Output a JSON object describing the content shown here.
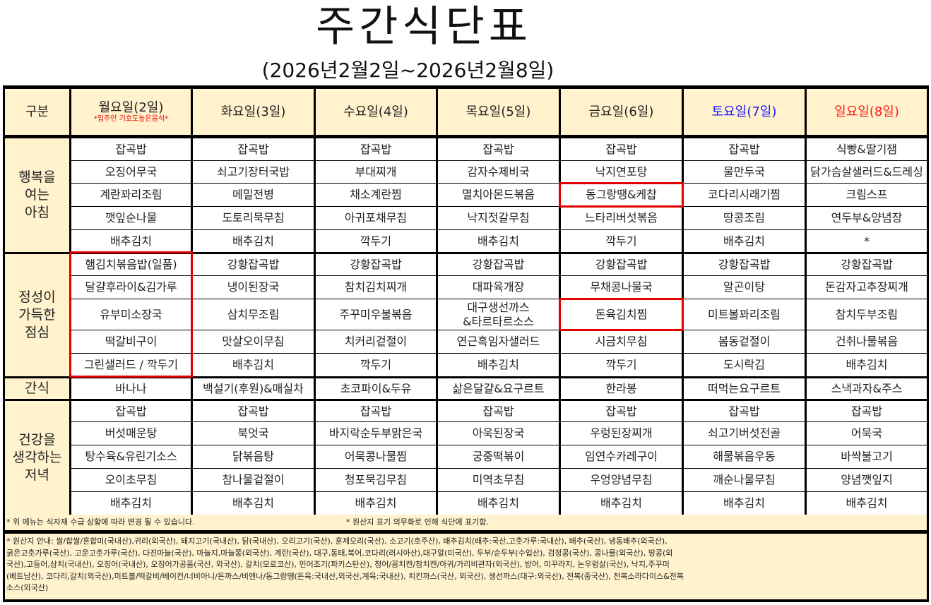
{
  "title": "주간식단표",
  "subtitle": "(2026년2월2일~2026년2월8일)",
  "colors": {
    "header_bg": "#FFF2CC",
    "saturday": "#1a1aff",
    "sunday": "#ff1a1a",
    "highlight_box": "#e00000"
  },
  "header": {
    "category_label": "구분",
    "days": [
      {
        "label": "월요일(2일)",
        "note": "*입주인 기호도높은음식*",
        "color": "#222222"
      },
      {
        "label": "화요일(3일)",
        "color": "#222222"
      },
      {
        "label": "수요일(4일)",
        "color": "#222222"
      },
      {
        "label": "목요일(5일)",
        "color": "#222222"
      },
      {
        "label": "금요일(6일)",
        "color": "#222222"
      },
      {
        "label": "토요일(7일)",
        "color": "#1a1aff"
      },
      {
        "label": "일요일(8일)",
        "color": "#ff1a1a"
      }
    ]
  },
  "meals": [
    {
      "name": "행복을\n여는\n아침",
      "rows": [
        [
          "잡곡밥",
          "잡곡밥",
          "잡곡밥",
          "잡곡밥",
          "잡곡밥",
          "잡곡밥",
          "식빵&딸기잼"
        ],
        [
          "오징어무국",
          "쇠고기장터국밥",
          "부대찌개",
          "감자수제비국",
          "낙지연포탕",
          "물만두국",
          "닭가슴살샐러드&드레싱"
        ],
        [
          "계란꽈리조림",
          "메밀전병",
          "채소계란찜",
          "멸치아몬드볶음",
          "동그랑땡&케찹",
          "코다리시래기찜",
          "크림스프"
        ],
        [
          "깻잎순나물",
          "도토리묵무침",
          "아귀포채무침",
          "낙지젓갈무침",
          "느타리버섯볶음",
          "땅콩조림",
          "연두부&양념장"
        ],
        [
          "배추김치",
          "배추김치",
          "깍두기",
          "배추김치",
          "깍두기",
          "배추김치",
          "*"
        ]
      ]
    },
    {
      "name": "정성이\n가득한\n점심",
      "rows": [
        [
          "햄김치볶음밥(일품)",
          "강황잡곡밥",
          "강황잡곡밥",
          "강황잡곡밥",
          "강황잡곡밥",
          "강황잡곡밥",
          "강황잡곡밥"
        ],
        [
          "달걀후라이&김가루",
          "냉이된장국",
          "참치김치찌개",
          "대파육개장",
          "무채콩나물국",
          "알곤이탕",
          "돈감자고추장찌개"
        ],
        [
          "유부미소장국",
          "삼치무조림",
          "주꾸미우불볶음",
          "대구생선까스\n&타르타르소스",
          "돈육김치찜",
          "미트볼꽈리조림",
          "참치두부조림"
        ],
        [
          "떡갈비구이",
          "맛살오이무침",
          "치커리겉절이",
          "연근흑임자샐러드",
          "시금치무침",
          "봄동겉절이",
          "건취나물볶음"
        ],
        [
          "그린샐러드 / 깍두기",
          "배추김치",
          "깍두기",
          "배추김치",
          "깍두기",
          "도시락김",
          "배추김치"
        ]
      ]
    },
    {
      "name": "간식",
      "rows": [
        [
          "바나나",
          "백설기(후원)&매실차",
          "초코파이&두유",
          "삶은달걀&요구르트",
          "한라봉",
          "떠먹는요구르트",
          "스낵과자&주스"
        ]
      ]
    },
    {
      "name": "건강을\n생각하는\n저녁",
      "rows": [
        [
          "잡곡밥",
          "잡곡밥",
          "잡곡밥",
          "잡곡밥",
          "잡곡밥",
          "잡곡밥",
          "잡곡밥"
        ],
        [
          "버섯매운탕",
          "북엇국",
          "바지락순두부맑은국",
          "아욱된장국",
          "우렁된장찌개",
          "쇠고기버섯전골",
          "어묵국"
        ],
        [
          "탕수육&유린기소스",
          "닭볶음탕",
          "어묵콩나물찜",
          "궁중떡볶이",
          "임연수카레구이",
          "해물볶음우동",
          "바싹불고기"
        ],
        [
          "오이초무침",
          "참나물겉절이",
          "청포묵김무침",
          "미역초무침",
          "우엉양념무침",
          "깨순나물무침",
          "양념깻잎지"
        ],
        [
          "배추김치",
          "배추김치",
          "배추김치",
          "배추김치",
          "배추김치",
          "배추김치",
          "배추김치"
        ]
      ]
    }
  ],
  "notes": {
    "change_notice": "* 위 메뉴는 식자재 수급 상황에 따라 변경 될 수 있습니다.",
    "origin_notice": "* 원산지 표기 의무화로 인해 식단에 표기함.",
    "origin_lines": [
      "* 원산지 안내: 쌀/찹쌀/혼합미(국내산),귀리(외국산), 돼지고기(국내산), 닭(국내산), 오리고기(국산), 훈제오리(국산), 소고기(호주산), 배추김치(배추:국산,고춧가루:국내산), 배추(국산), 냉동배추(외국산),",
      "굵은고춧가루(국산), 고운고춧가루(국산), 다진마늘(국산), 마늘지,마늘쫑(외국산), 계란(국산), 대구,동태,북어,코다리(러시아산),대구알(미국산), 두부/순두부(수입산), 검정콩(국산), 콩나물(외국산), 땅콩(외",
      "국산),고등어,삼치(국내산), 오징어(국내산), 오징어가공품(국산, 외국산), 갈치(모로코산), 민어조기(파키스탄산), 청어/꽁치캔/참치캔/아귀/가리비관자(외국산), 방어, 미꾸라지, 논우렁살(국산), 낙지,주꾸미",
      "(베트남산), 코다리,갈치(외국산),미트볼/떡갈비/베이컨/너비아니/돈까스/비엔나/동그랑땡(돈육:국내산,외국산,계육:국내산), 치킨까스(국산, 외국산), 생선까스(대구:외국산), 전복(중국산), 전복소라다이스&전복",
      "소스(외국산)"
    ]
  }
}
